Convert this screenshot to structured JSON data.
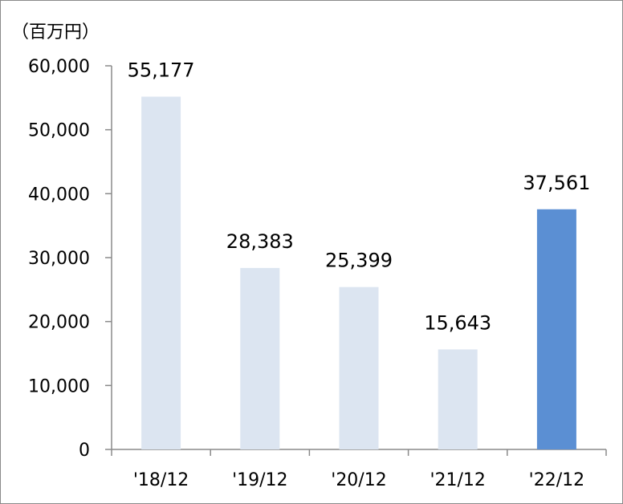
{
  "chart_data": {
    "type": "bar",
    "unit_label": "（百万円）",
    "categories": [
      "'18/12",
      "'19/12",
      "'20/12",
      "'21/12",
      "'22/12"
    ],
    "values": [
      55177,
      28383,
      25399,
      15643,
      37561
    ],
    "data_labels": [
      "55,177",
      "28,383",
      "25,399",
      "15,643",
      "37,561"
    ],
    "yticks": [
      "0",
      "10,000",
      "20,000",
      "30,000",
      "40,000",
      "50,000",
      "60,000"
    ],
    "ylim": [
      0,
      60000
    ],
    "grid": false,
    "legend": "none",
    "colors": {
      "bar": "#dce5f1",
      "highlight_bar": "#5b8fd3",
      "axis": "#8a8a8a"
    },
    "highlight_index": 4
  }
}
